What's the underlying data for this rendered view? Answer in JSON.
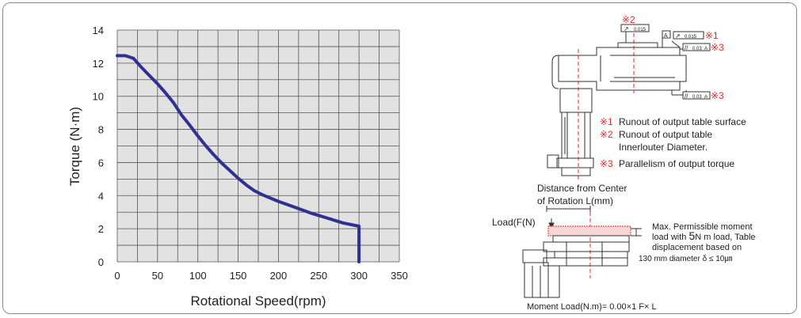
{
  "chart_data": {
    "type": "line",
    "title": "",
    "xlabel": "Rotational Speed(rpm)",
    "ylabel": "Torque (N·m)",
    "xlim": [
      0,
      350
    ],
    "ylim": [
      0,
      14
    ],
    "x_ticks": [
      "0",
      "50",
      "100",
      "150",
      "200",
      "250",
      "300",
      "350"
    ],
    "y_ticks": [
      "0",
      "2",
      "4",
      "6",
      "8",
      "10",
      "12",
      "14"
    ],
    "grid": true,
    "line_color": "#2e3192",
    "series": [
      {
        "name": "",
        "x": [
          0,
          10,
          20,
          30,
          40,
          50,
          60,
          70,
          80,
          90,
          100,
          110,
          120,
          130,
          140,
          150,
          160,
          170,
          180,
          200,
          220,
          240,
          260,
          280,
          300,
          300
        ],
        "y": [
          12.45,
          12.45,
          12.3,
          11.75,
          11.25,
          10.75,
          10.2,
          9.6,
          8.85,
          8.25,
          7.6,
          7.0,
          6.45,
          5.95,
          5.5,
          5.05,
          4.65,
          4.3,
          4.05,
          3.65,
          3.3,
          2.95,
          2.65,
          2.35,
          2.15,
          0
        ]
      }
    ]
  },
  "diagram": {
    "accent_color": "#e8262a",
    "line_color": "#333333",
    "markers": {
      "m1": "※1",
      "m2": "※2",
      "m3": "※3"
    },
    "tolerance_boxes": {
      "runout_top_value": "0.015",
      "runout_side_value": "0.015",
      "datum_a": "A",
      "parallel_top_value": "0.03",
      "parallel_bottom_value": "0.03"
    },
    "legend": {
      "item1": "Runout of output table surface",
      "item2_line1": "Runout of output table",
      "item2_line2": "Innerlouter Diameter.",
      "item3": "Parallelism of output torque"
    },
    "distance_label_line1": "Distance from Center",
    "distance_label_line2": "of Rotation L(mm)",
    "load_label": "Load(F(N)",
    "moment_note_line1": "Max. Permissible moment",
    "moment_note_line2_a": "load with",
    "moment_note_line2_b": "5",
    "moment_note_line2_c": "N m load, Table",
    "moment_note_line3": "displacement based on",
    "moment_note_line4": "130 mm diameter δ ≤  10㎛",
    "moment_formula": "Moment Load(N.m)= 0.00×1 F× L"
  }
}
